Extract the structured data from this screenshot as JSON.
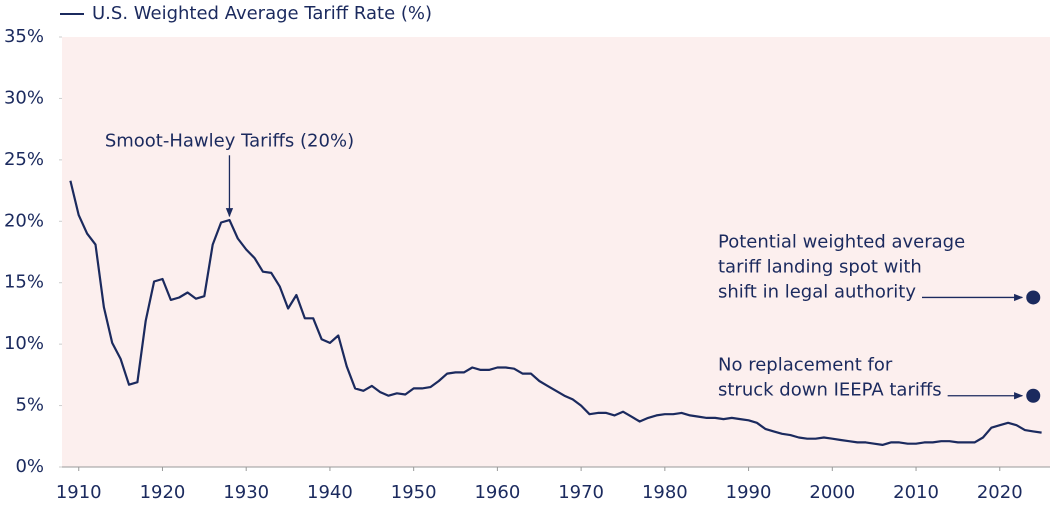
{
  "chart_data": {
    "type": "line",
    "x": [
      1909,
      1910,
      1911,
      1912,
      1913,
      1914,
      1915,
      1916,
      1917,
      1918,
      1919,
      1920,
      1921,
      1922,
      1923,
      1924,
      1925,
      1926,
      1927,
      1928,
      1929,
      1930,
      1931,
      1932,
      1933,
      1934,
      1935,
      1936,
      1937,
      1938,
      1939,
      1940,
      1941,
      1942,
      1943,
      1944,
      1945,
      1946,
      1947,
      1948,
      1949,
      1950,
      1951,
      1952,
      1953,
      1954,
      1955,
      1956,
      1957,
      1958,
      1959,
      1960,
      1961,
      1962,
      1963,
      1964,
      1965,
      1966,
      1967,
      1968,
      1969,
      1970,
      1971,
      1972,
      1973,
      1974,
      1975,
      1976,
      1977,
      1978,
      1979,
      1980,
      1981,
      1982,
      1983,
      1984,
      1985,
      1986,
      1987,
      1988,
      1989,
      1990,
      1991,
      1992,
      1993,
      1994,
      1995,
      1996,
      1997,
      1998,
      1999,
      2000,
      2001,
      2002,
      2003,
      2004,
      2005,
      2006,
      2007,
      2008,
      2009,
      2010,
      2011,
      2012,
      2013,
      2014,
      2015,
      2016,
      2017,
      2018,
      2019,
      2020,
      2021,
      2022,
      2023,
      2024,
      2025
    ],
    "series": [
      {
        "name": "U.S. Weighted Average Tariff Rate (%)",
        "color": "#1b2a5e",
        "values": [
          23.3,
          20.5,
          19.0,
          18.1,
          13.0,
          10.1,
          8.8,
          6.7,
          6.9,
          11.9,
          15.1,
          15.3,
          13.6,
          13.8,
          14.2,
          13.7,
          13.9,
          18.1,
          19.9,
          20.1,
          18.6,
          17.7,
          17.0,
          15.9,
          15.8,
          14.7,
          12.9,
          14.0,
          12.1,
          12.1,
          10.4,
          10.1,
          10.7,
          8.2,
          6.4,
          6.2,
          6.6,
          6.1,
          5.8,
          6.0,
          5.9,
          6.4,
          6.4,
          6.5,
          7.0,
          7.6,
          7.7,
          7.7,
          8.1,
          7.9,
          7.9,
          8.1,
          8.1,
          8.0,
          7.6,
          7.6,
          7.0,
          6.6,
          6.2,
          5.8,
          5.5,
          5.0,
          4.3,
          4.4,
          4.4,
          4.2,
          4.5,
          4.1,
          3.7,
          4.0,
          4.2,
          4.3,
          4.3,
          4.4,
          4.2,
          4.1,
          4.0,
          4.0,
          3.9,
          4.0,
          3.9,
          3.8,
          3.6,
          3.1,
          2.9,
          2.7,
          2.6,
          2.4,
          2.3,
          2.3,
          2.4,
          2.3,
          2.2,
          2.1,
          2.0,
          2.0,
          1.9,
          1.8,
          2.0,
          2.0,
          1.9,
          1.9,
          2.0,
          2.0,
          2.1,
          2.1,
          2.0,
          2.0,
          2.0,
          2.4,
          3.2,
          3.4,
          3.6,
          3.4,
          3.0,
          2.9,
          2.8
        ]
      }
    ],
    "points": [
      {
        "label": [
          "Potential weighted average",
          "tariff landing spot with",
          "shift in legal authority"
        ],
        "x": 2024,
        "y": 13.8,
        "color": "#1b2a5e"
      },
      {
        "label": [
          "No replacement for",
          "struck down IEEPA tariffs"
        ],
        "x": 2024,
        "y": 5.8,
        "color": "#1b2a5e"
      }
    ],
    "annotations": [
      {
        "text": "Smoot-Hawley Tariffs (20%)",
        "x": 1928,
        "y": 20
      }
    ],
    "xlim": [
      1908,
      2026
    ],
    "xticks": [
      1910,
      1920,
      1930,
      1940,
      1950,
      1960,
      1970,
      1980,
      1990,
      2000,
      2010,
      2020
    ],
    "ylim": [
      0,
      35
    ],
    "yticks": [
      {
        "value": 0,
        "label": "0%"
      },
      {
        "value": 5,
        "label": "5%"
      },
      {
        "value": 10,
        "label": "10%"
      },
      {
        "value": 15,
        "label": "15%"
      },
      {
        "value": 20,
        "label": "20%"
      },
      {
        "value": 25,
        "label": "25%"
      },
      {
        "value": 30,
        "label": "30%"
      },
      {
        "value": 35,
        "label": "35%"
      }
    ],
    "background": "#fcefee"
  }
}
